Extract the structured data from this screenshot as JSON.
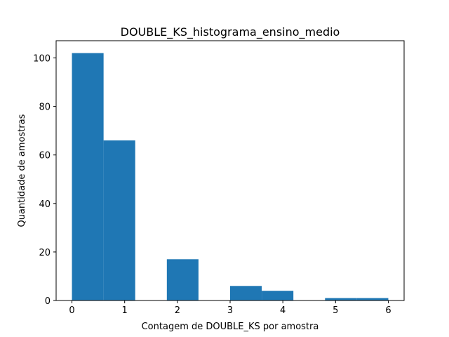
{
  "chart_data": {
    "type": "bar",
    "title": "DOUBLE_KS_histograma_ensino_medio",
    "xlabel": "Contagem de DOUBLE_KS por amostra",
    "ylabel": "Quantidade de amostras",
    "xlim": [
      -0.3,
      6.3
    ],
    "ylim": [
      0,
      107.1
    ],
    "xticks": [
      0,
      1,
      2,
      3,
      4,
      5,
      6
    ],
    "yticks": [
      0,
      20,
      40,
      60,
      80,
      100
    ],
    "bins": [
      {
        "start": 0.0,
        "end": 0.6,
        "value": 102
      },
      {
        "start": 0.6,
        "end": 1.2,
        "value": 66
      },
      {
        "start": 1.2,
        "end": 1.8,
        "value": 0
      },
      {
        "start": 1.8,
        "end": 2.4,
        "value": 17
      },
      {
        "start": 2.4,
        "end": 3.0,
        "value": 0
      },
      {
        "start": 3.0,
        "end": 3.6,
        "value": 6
      },
      {
        "start": 3.6,
        "end": 4.2,
        "value": 4
      },
      {
        "start": 4.2,
        "end": 4.8,
        "value": 0
      },
      {
        "start": 4.8,
        "end": 5.4,
        "value": 1
      },
      {
        "start": 5.4,
        "end": 6.0,
        "value": 1
      }
    ],
    "grid": false,
    "legend": "none",
    "bar_color": "#1f77b4"
  }
}
